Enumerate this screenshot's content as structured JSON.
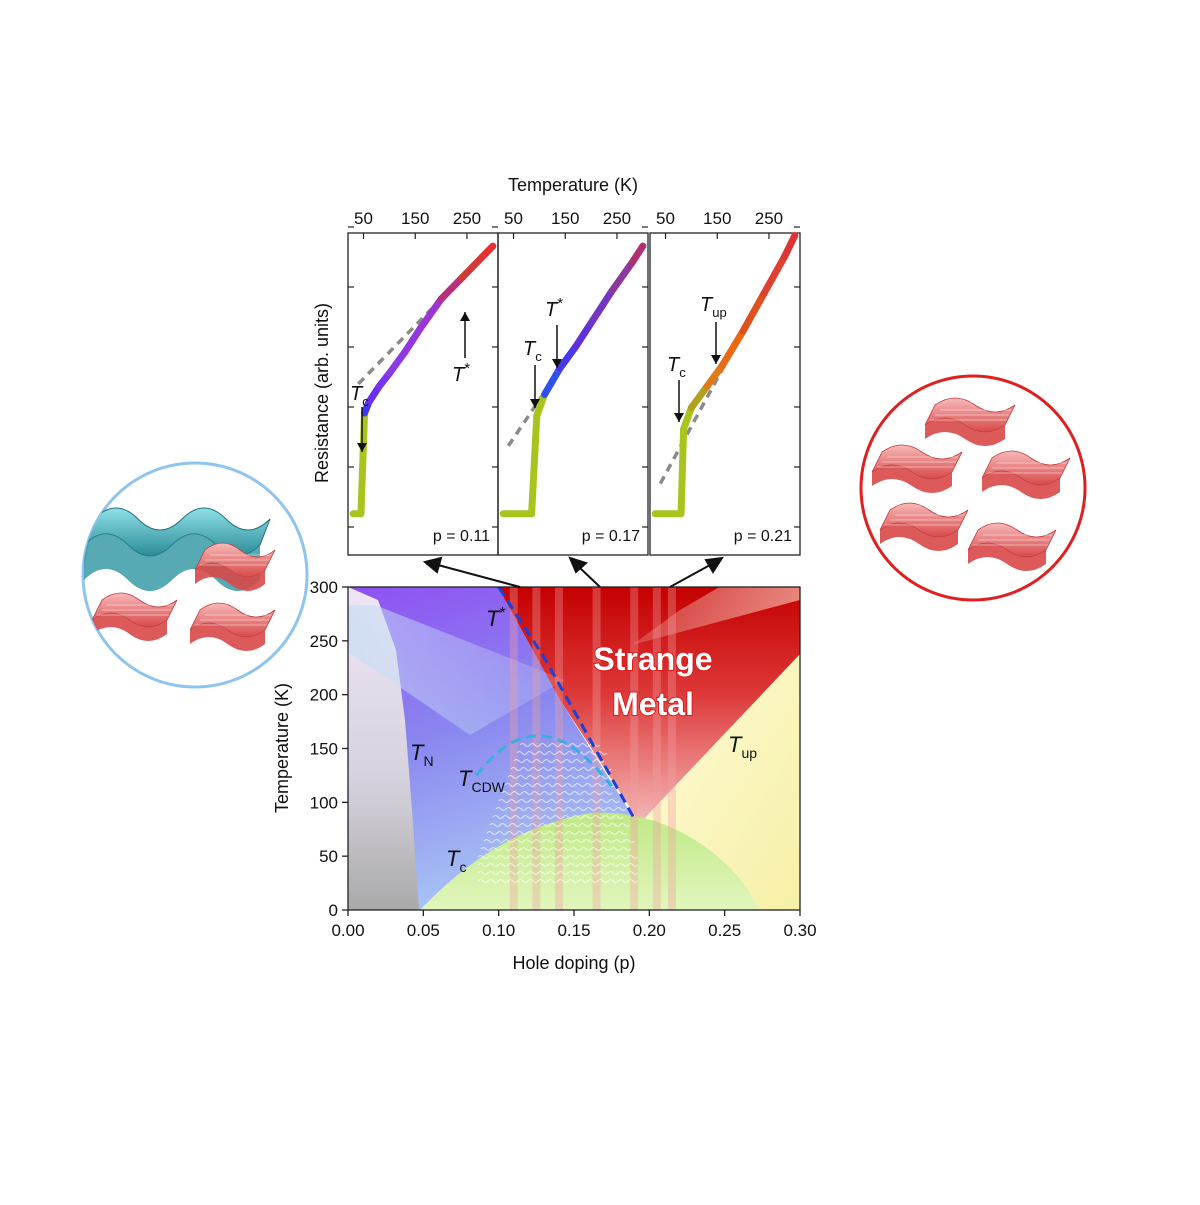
{
  "inset_panels": {
    "x_axis_title": "Temperature (K)",
    "y_axis_title": "Resistance (arb. units)",
    "x_ticks": [
      "50",
      "150",
      "250"
    ],
    "panels": [
      {
        "doping_label": "p = 0.11",
        "labels": [
          {
            "main": "T",
            "sub": "c"
          },
          {
            "main": "T",
            "sup": "*"
          }
        ]
      },
      {
        "doping_label": "p = 0.17",
        "labels": [
          {
            "main": "T",
            "sub": "c"
          },
          {
            "main": "T",
            "sup": "*"
          }
        ]
      },
      {
        "doping_label": "p = 0.21",
        "labels": [
          {
            "main": "T",
            "sub": "c"
          },
          {
            "main": "T",
            "sub": "up"
          }
        ]
      }
    ]
  },
  "phase_diagram": {
    "x_axis_title": "Hole doping (p)",
    "y_axis_title": "Temperature (K)",
    "x_ticks": [
      "0.00",
      "0.05",
      "0.10",
      "0.15",
      "0.20",
      "0.25",
      "0.30"
    ],
    "y_ticks": [
      "0",
      "50",
      "100",
      "150",
      "200",
      "250",
      "300"
    ],
    "region_labels": {
      "strange_metal_line1": "Strange",
      "strange_metal_line2": "Metal",
      "T_N": {
        "main": "T",
        "sub": "N"
      },
      "T_CDW": {
        "main": "T",
        "sub": "CDW"
      },
      "T_c": {
        "main": "T",
        "sub": "c"
      },
      "T_star": {
        "main": "T",
        "sup": "*"
      },
      "T_up": {
        "main": "T",
        "sub": "up"
      }
    }
  },
  "chart_data": [
    {
      "type": "line",
      "title": "",
      "xlabel": "Temperature (K)",
      "ylabel": "Resistance (arb. units)",
      "xlim": [
        20,
        310
      ],
      "panels": [
        {
          "p": 0.11,
          "x": [
            30,
            45,
            52,
            60,
            80,
            100,
            130,
            160,
            200,
            240,
            280,
            300
          ],
          "y": [
            0.05,
            0.05,
            0.43,
            0.47,
            0.53,
            0.58,
            0.66,
            0.75,
            0.86,
            0.94,
            1.02,
            1.06
          ]
        },
        {
          "p": 0.17,
          "x": [
            30,
            85,
            95,
            110,
            140,
            170,
            200,
            240,
            280,
            300
          ],
          "y": [
            0.05,
            0.05,
            0.42,
            0.5,
            0.6,
            0.68,
            0.77,
            0.89,
            1.0,
            1.06
          ]
        },
        {
          "p": 0.21,
          "x": [
            30,
            80,
            85,
            100,
            130,
            160,
            200,
            240,
            280,
            300
          ],
          "y": [
            0.05,
            0.05,
            0.37,
            0.45,
            0.53,
            0.61,
            0.74,
            0.88,
            1.02,
            1.1
          ]
        }
      ]
    },
    {
      "type": "area",
      "title": "",
      "xlabel": "Hole doping (p)",
      "ylabel": "Temperature (K)",
      "xlim": [
        0,
        0.3
      ],
      "ylim": [
        0,
        300
      ],
      "series": [
        {
          "name": "T_N",
          "x": [
            0.0,
            0.02,
            0.03,
            0.04,
            0.047
          ],
          "y": [
            300,
            290,
            200,
            100,
            0
          ]
        },
        {
          "name": "T_c",
          "x": [
            0.05,
            0.08,
            0.11,
            0.14,
            0.16,
            0.19,
            0.22,
            0.25,
            0.27
          ],
          "y": [
            0,
            50,
            75,
            88,
            91,
            88,
            72,
            40,
            0
          ]
        },
        {
          "name": "T_CDW",
          "x": [
            0.085,
            0.1,
            0.12,
            0.14,
            0.16,
            0.175
          ],
          "y": [
            125,
            150,
            163,
            160,
            140,
            115
          ]
        },
        {
          "name": "T*",
          "x": [
            0.1,
            0.13,
            0.16,
            0.19
          ],
          "y": [
            300,
            235,
            160,
            85
          ]
        },
        {
          "name": "T_up",
          "x": [
            0.19,
            0.22,
            0.26,
            0.3
          ],
          "y": [
            85,
            130,
            180,
            235
          ]
        }
      ]
    }
  ]
}
